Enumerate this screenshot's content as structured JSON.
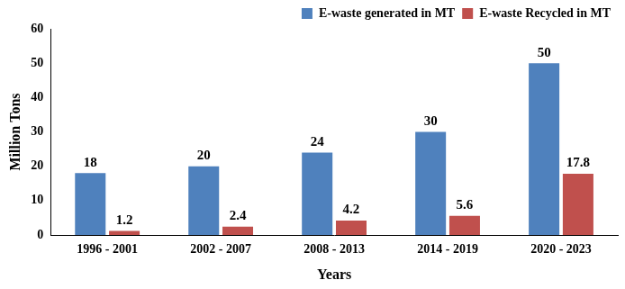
{
  "chart_data": {
    "type": "bar",
    "x_label": "Years",
    "y_label": "Million Tons",
    "categories": [
      "1996 - 2001",
      "2002 - 2007",
      "2008 - 2013",
      "2014 - 2019",
      "2020 - 2023"
    ],
    "series": [
      {
        "name": "E-waste generated in MT",
        "color": "#4f81bd",
        "values": [
          18,
          20,
          24,
          30,
          50
        ]
      },
      {
        "name": "E-waste Recycled in MT",
        "color": "#c0504d",
        "values": [
          1.2,
          2.4,
          4.2,
          5.6,
          17.8
        ]
      }
    ],
    "ylim": [
      0,
      60
    ],
    "yticks": [
      0,
      10,
      20,
      30,
      40,
      50,
      60
    ],
    "grid": false,
    "legend": "top",
    "data_labels": true
  }
}
